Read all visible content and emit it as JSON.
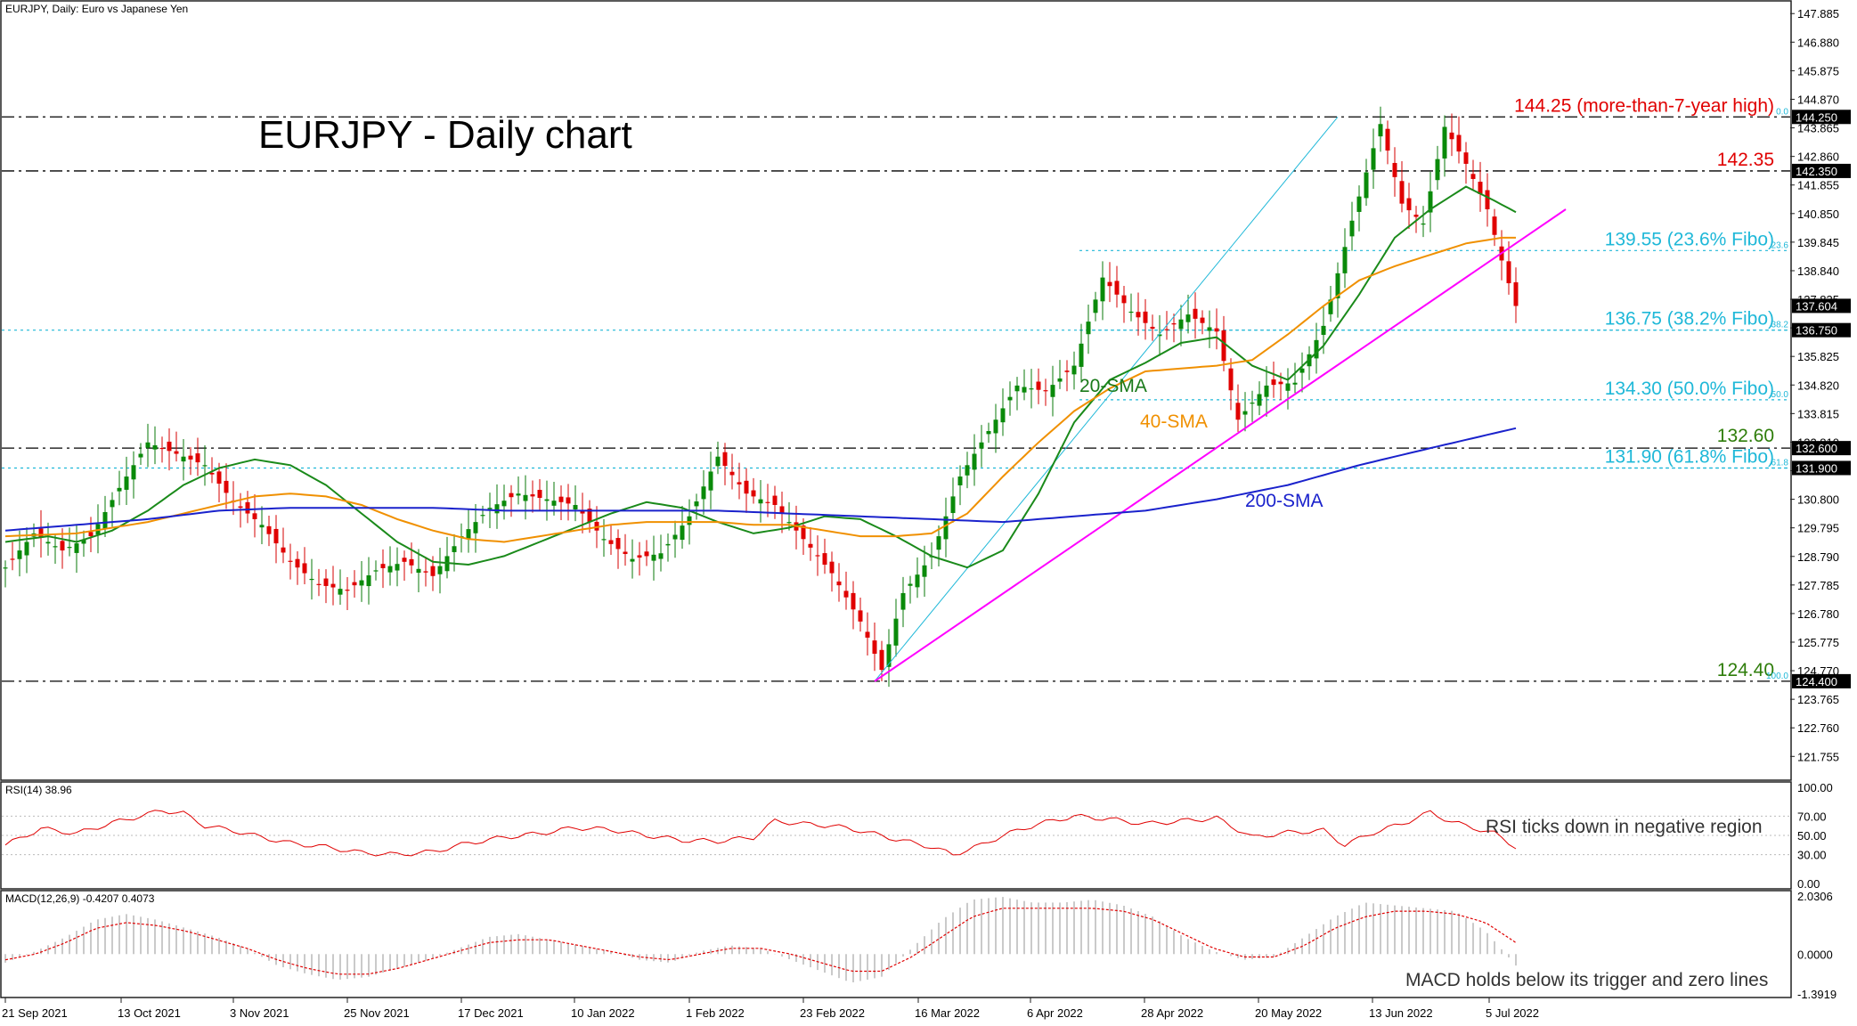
{
  "header": {
    "symbol_line": "EURJPY, Daily:  Euro vs Japanese Yen",
    "rsi_line": "RSI(14) 38.96",
    "macd_line": "MACD(12,26,9) -0.4207 0.4073"
  },
  "chart_data": [
    {
      "type": "line",
      "title": "EURJPY - Daily chart",
      "x_labels": [
        "21 Sep 2021",
        "13 Oct 2021",
        "3 Nov 2021",
        "25 Nov 2021",
        "17 Dec 2021",
        "10 Jan 2022",
        "1 Feb 2022",
        "23 Feb 2022",
        "16 Mar 2022",
        "6 Apr 2022",
        "28 Apr 2022",
        "20 May 2022",
        "13 Jun 2022",
        "5 Jul 2022"
      ],
      "y_ticks": [
        "147.885",
        "146.880",
        "145.875",
        "144.870",
        "143.865",
        "142.860",
        "141.855",
        "140.850",
        "139.845",
        "138.840",
        "137.835",
        "136.830",
        "135.825",
        "134.820",
        "133.815",
        "132.810",
        "131.805",
        "130.800",
        "129.795",
        "128.790",
        "127.785",
        "126.780",
        "125.775",
        "124.770",
        "123.765",
        "122.760",
        "121.755"
      ],
      "ylim": [
        120.95,
        148.3
      ],
      "current_price": "137.604",
      "price_tags": [
        {
          "label": "144.250",
          "color": "#000000"
        },
        {
          "label": "142.350",
          "color": "#000000"
        },
        {
          "label": "136.750",
          "color": "#000000"
        },
        {
          "label": "132.600",
          "color": "#000000"
        },
        {
          "label": "131.900",
          "color": "#000000"
        },
        {
          "label": "124.400",
          "color": "#000000"
        }
      ],
      "levels": [
        {
          "value": 144.25,
          "label": "144.25 (more-than-7-year high)",
          "color": "#e00000"
        },
        {
          "value": 142.35,
          "label": "142.35",
          "color": "#e00000"
        },
        {
          "value": 139.55,
          "label": "139.55 (23.6% Fibo)",
          "color": "#1fb8d8"
        },
        {
          "value": 136.75,
          "label": "136.75 (38.2% Fibo)",
          "color": "#1fb8d8"
        },
        {
          "value": 134.3,
          "label": "134.30 (50.0% Fibo)",
          "color": "#1fb8d8"
        },
        {
          "value": 132.6,
          "label": "132.60",
          "color": "#2e7d0a"
        },
        {
          "value": 131.9,
          "label": "131.90 (61.8% Fibo)",
          "color": "#1fb8d8"
        },
        {
          "value": 124.4,
          "label": "124.40",
          "color": "#2e7d0a"
        }
      ],
      "fibo_small_labels": [
        "0.0",
        "23.6",
        "38.2",
        "50.0",
        "61.8",
        "100.0"
      ],
      "series": [
        {
          "name": "20-SMA",
          "color": "#1a8a1a",
          "values": [
            [
              0,
              129.3
            ],
            [
              6,
              129.5
            ],
            [
              10,
              129.3
            ],
            [
              15,
              129.7
            ],
            [
              20,
              130.4
            ],
            [
              25,
              131.3
            ],
            [
              30,
              131.9
            ],
            [
              35,
              132.2
            ],
            [
              40,
              132.0
            ],
            [
              45,
              131.3
            ],
            [
              50,
              130.3
            ],
            [
              55,
              129.3
            ],
            [
              60,
              128.6
            ],
            [
              65,
              128.5
            ],
            [
              70,
              128.8
            ],
            [
              75,
              129.3
            ],
            [
              80,
              129.8
            ],
            [
              85,
              130.3
            ],
            [
              90,
              130.7
            ],
            [
              95,
              130.5
            ],
            [
              100,
              130.0
            ],
            [
              105,
              129.6
            ],
            [
              110,
              129.8
            ],
            [
              115,
              130.2
            ],
            [
              120,
              130.1
            ],
            [
              125,
              129.5
            ],
            [
              130,
              128.8
            ],
            [
              135,
              128.4
            ],
            [
              140,
              129.0
            ],
            [
              145,
              131.0
            ],
            [
              150,
              133.5
            ],
            [
              155,
              135.0
            ],
            [
              160,
              135.6
            ],
            [
              165,
              136.3
            ],
            [
              170,
              136.5
            ],
            [
              175,
              135.5
            ],
            [
              180,
              135.0
            ],
            [
              185,
              136.2
            ],
            [
              190,
              138.0
            ],
            [
              195,
              140.0
            ],
            [
              200,
              141.0
            ],
            [
              205,
              141.8
            ],
            [
              209,
              141.3
            ],
            [
              212,
              140.9
            ]
          ]
        },
        {
          "name": "40-SMA",
          "color": "#f09000",
          "values": [
            [
              0,
              129.5
            ],
            [
              10,
              129.6
            ],
            [
              20,
              130.0
            ],
            [
              25,
              130.3
            ],
            [
              30,
              130.6
            ],
            [
              35,
              130.9
            ],
            [
              40,
              131.0
            ],
            [
              45,
              130.9
            ],
            [
              50,
              130.6
            ],
            [
              55,
              130.1
            ],
            [
              60,
              129.7
            ],
            [
              65,
              129.4
            ],
            [
              70,
              129.3
            ],
            [
              75,
              129.5
            ],
            [
              80,
              129.7
            ],
            [
              85,
              129.9
            ],
            [
              90,
              130.0
            ],
            [
              95,
              130.0
            ],
            [
              100,
              130.0
            ],
            [
              105,
              129.9
            ],
            [
              110,
              129.9
            ],
            [
              115,
              129.7
            ],
            [
              120,
              129.5
            ],
            [
              125,
              129.5
            ],
            [
              130,
              129.6
            ],
            [
              135,
              130.3
            ],
            [
              140,
              131.6
            ],
            [
              145,
              132.8
            ],
            [
              150,
              133.9
            ],
            [
              155,
              134.7
            ],
            [
              160,
              135.3
            ],
            [
              165,
              135.4
            ],
            [
              170,
              135.5
            ],
            [
              175,
              135.7
            ],
            [
              180,
              136.6
            ],
            [
              185,
              137.6
            ],
            [
              190,
              138.5
            ],
            [
              195,
              139.0
            ],
            [
              200,
              139.4
            ],
            [
              205,
              139.8
            ],
            [
              210,
              140.0
            ],
            [
              212,
              140.0
            ]
          ]
        },
        {
          "name": "200-SMA",
          "color": "#1a22cc",
          "values": [
            [
              0,
              129.7
            ],
            [
              10,
              129.9
            ],
            [
              20,
              130.1
            ],
            [
              30,
              130.4
            ],
            [
              40,
              130.5
            ],
            [
              50,
              130.5
            ],
            [
              60,
              130.5
            ],
            [
              70,
              130.4
            ],
            [
              80,
              130.4
            ],
            [
              90,
              130.4
            ],
            [
              100,
              130.4
            ],
            [
              110,
              130.3
            ],
            [
              120,
              130.2
            ],
            [
              130,
              130.1
            ],
            [
              140,
              130.0
            ],
            [
              150,
              130.2
            ],
            [
              160,
              130.4
            ],
            [
              170,
              130.8
            ],
            [
              180,
              131.3
            ],
            [
              190,
              132.0
            ],
            [
              200,
              132.6
            ],
            [
              212,
              133.3
            ]
          ]
        }
      ],
      "trendlines": [
        {
          "name": "uptrend",
          "from": [
            0,
            124.4
          ],
          "to": [
            0,
            142.0
          ],
          "color": "#ff00ff"
        },
        {
          "name": "fibo-base",
          "from": [
            0,
            124.4
          ],
          "to": [
            0,
            144.25
          ],
          "color": "#1fb8d8"
        }
      ],
      "annotations": [
        {
          "label": "20-SMA",
          "color": "#1a7a1a"
        },
        {
          "label": "40-SMA",
          "color": "#f09000"
        },
        {
          "label": "200-SMA",
          "color": "#1a22cc"
        }
      ]
    },
    {
      "type": "line",
      "title": "",
      "y_ticks": [
        "100.00",
        "70.00",
        "50.00",
        "30.00",
        "0.00"
      ],
      "ylim": [
        0,
        100
      ],
      "annotation": "RSI ticks down in negative region",
      "series": [
        {
          "color": "#e00000",
          "values": [
            [
              0,
              40
            ],
            [
              5,
              57
            ],
            [
              10,
              52
            ],
            [
              15,
              63
            ],
            [
              20,
              72
            ],
            [
              22,
              76
            ],
            [
              25,
              73
            ],
            [
              28,
              60
            ],
            [
              32,
              55
            ],
            [
              36,
              48
            ],
            [
              40,
              42
            ],
            [
              45,
              38
            ],
            [
              50,
              32
            ],
            [
              55,
              30
            ],
            [
              60,
              33
            ],
            [
              65,
              42
            ],
            [
              70,
              48
            ],
            [
              75,
              52
            ],
            [
              80,
              58
            ],
            [
              85,
              56
            ],
            [
              90,
              50
            ],
            [
              95,
              45
            ],
            [
              100,
              44
            ],
            [
              105,
              48
            ],
            [
              108,
              65
            ],
            [
              112,
              62
            ],
            [
              116,
              60
            ],
            [
              120,
              55
            ],
            [
              125,
              46
            ],
            [
              130,
              38
            ],
            [
              133,
              30
            ],
            [
              137,
              40
            ],
            [
              140,
              50
            ],
            [
              145,
              62
            ],
            [
              150,
              70
            ],
            [
              155,
              67
            ],
            [
              160,
              62
            ],
            [
              165,
              65
            ],
            [
              170,
              68
            ],
            [
              175,
              48
            ],
            [
              180,
              53
            ],
            [
              185,
              55
            ],
            [
              188,
              40
            ],
            [
              192,
              53
            ],
            [
              196,
              62
            ],
            [
              200,
              74
            ],
            [
              203,
              64
            ],
            [
              206,
              58
            ],
            [
              209,
              52
            ],
            [
              212,
              38
            ]
          ]
        }
      ]
    },
    {
      "type": "bar",
      "title": "",
      "y_ticks": [
        "2.0306",
        "0.0000",
        "-1.3919"
      ],
      "ylim": [
        -1.3919,
        2.0306
      ],
      "annotation": "MACD holds below its trigger and zero lines",
      "series": [
        {
          "name": "histogram",
          "color": "#c0c0c0",
          "values": [
            -0.3,
            0.1,
            0.6,
            1.2,
            1.4,
            1.2,
            0.9,
            0.6,
            0.2,
            -0.4,
            -0.7,
            -0.9,
            -0.8,
            -0.5,
            -0.2,
            0.2,
            0.6,
            0.7,
            0.5,
            0.3,
            0.1,
            -0.2,
            -0.3,
            0.1,
            0.3,
            0.2,
            -0.2,
            -0.6,
            -1.0,
            -0.8,
            0.2,
            1.2,
            1.9,
            2.0,
            1.8,
            1.8,
            1.9,
            1.7,
            1.3,
            0.6,
            0.1,
            -0.2,
            -0.1,
            0.6,
            1.3,
            1.8,
            1.7,
            1.6,
            1.5,
            0.8,
            -0.4
          ]
        },
        {
          "name": "signal",
          "color": "#e00000",
          "values": [
            -0.2,
            0.0,
            0.4,
            0.9,
            1.1,
            1.0,
            0.8,
            0.5,
            0.2,
            -0.2,
            -0.5,
            -0.7,
            -0.7,
            -0.5,
            -0.2,
            0.1,
            0.4,
            0.5,
            0.5,
            0.3,
            0.1,
            -0.1,
            -0.2,
            0.0,
            0.2,
            0.2,
            0.0,
            -0.3,
            -0.6,
            -0.6,
            -0.1,
            0.6,
            1.3,
            1.6,
            1.6,
            1.6,
            1.6,
            1.5,
            1.2,
            0.7,
            0.2,
            -0.1,
            -0.1,
            0.3,
            0.9,
            1.3,
            1.5,
            1.5,
            1.4,
            1.1,
            0.4
          ]
        }
      ]
    }
  ]
}
